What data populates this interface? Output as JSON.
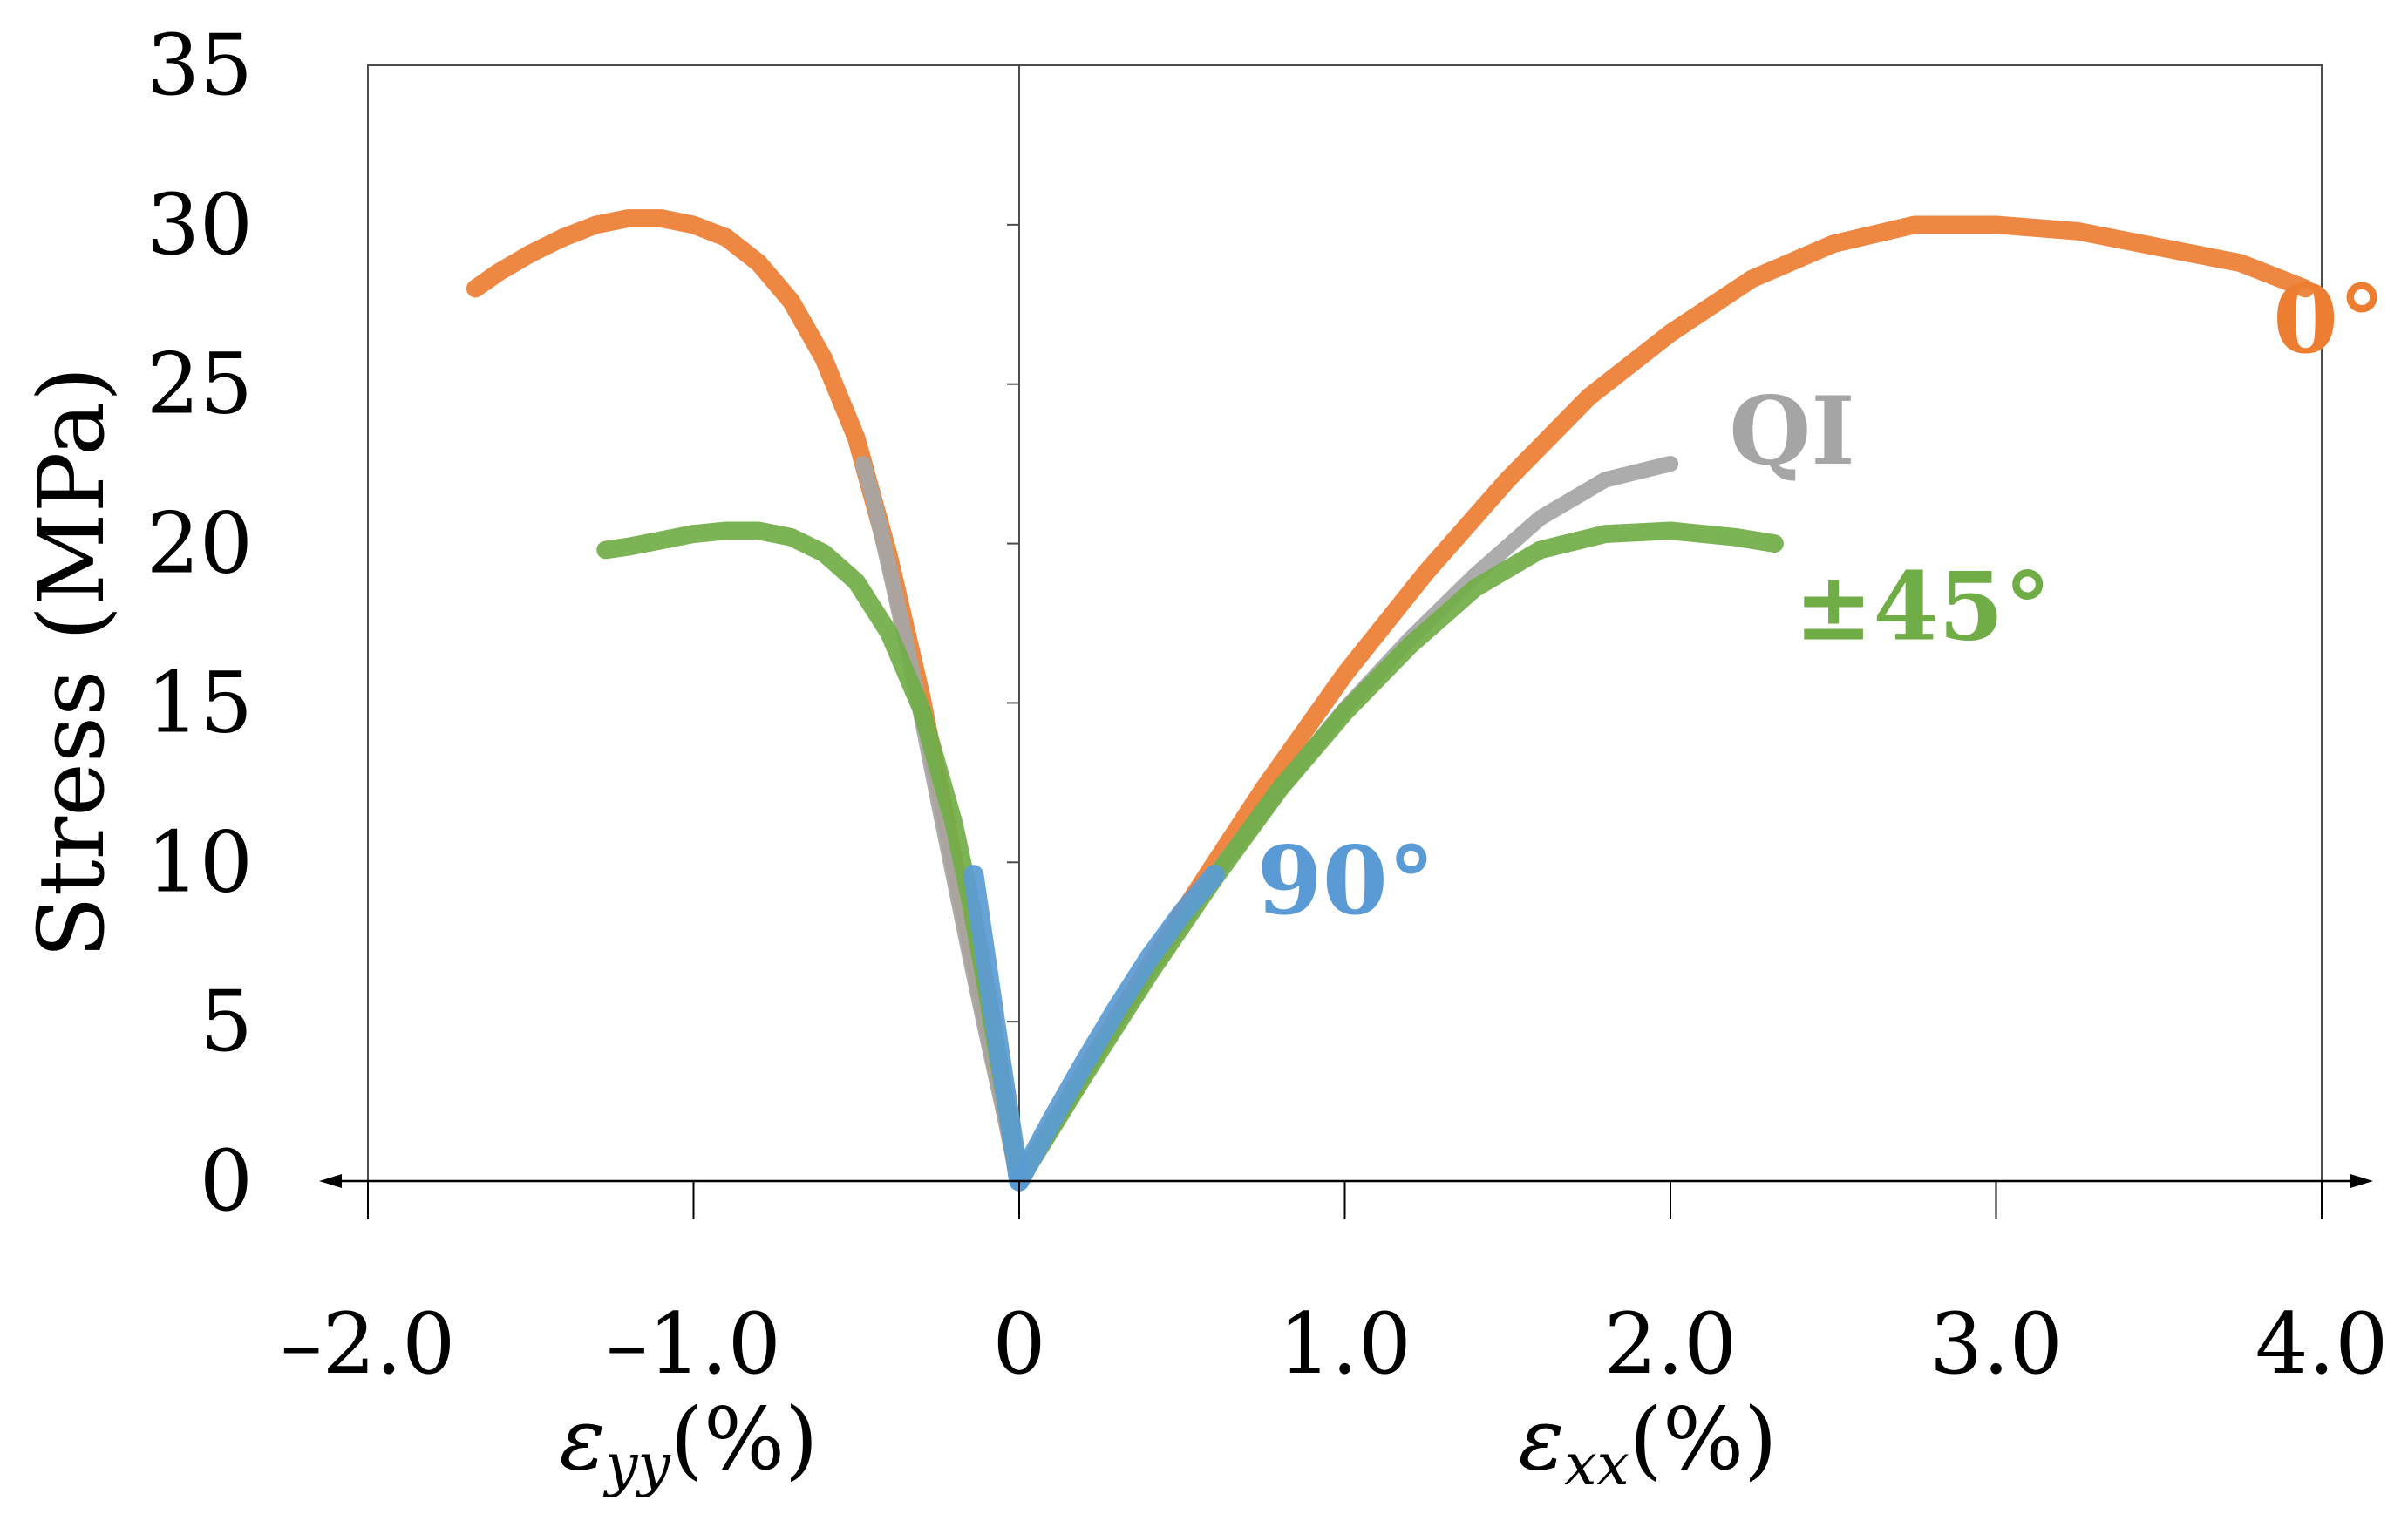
{
  "chart_data": {
    "type": "line",
    "title": "",
    "ylabel": "Stress (MPa)",
    "xlabel_left": {
      "symbol": "ε",
      "subscript": "yy",
      "unit": "(%)"
    },
    "xlabel_right": {
      "symbol": "ε",
      "subscript": "xx",
      "unit": "(%)"
    },
    "xlim": [
      -2.0,
      4.0
    ],
    "ylim": [
      0,
      35
    ],
    "x_ticks": [
      -2,
      -1,
      0,
      1,
      2,
      3,
      4
    ],
    "x_tick_labels": [
      "–2.0",
      "–1.0",
      "0",
      "1.0",
      "2.0",
      "3.0",
      "4.0"
    ],
    "y_ticks": [
      0,
      5,
      10,
      15,
      20,
      25,
      30,
      35
    ],
    "y_tick_labels": [
      "0",
      "5",
      "10",
      "15",
      "20",
      "25",
      "30",
      "35"
    ],
    "grid": false,
    "legend": "inline labels at curve ends",
    "series": [
      {
        "name": "0°",
        "color": "#ED7D31",
        "width": 8,
        "curves": [
          {
            "strain": "xx",
            "x": [
              0,
              0.25,
              0.5,
              0.75,
              1.0,
              1.25,
              1.5,
              1.75,
              2.0,
              2.25,
              2.5,
              2.75,
              3.0,
              3.25,
              3.5,
              3.75,
              3.95
            ],
            "y": [
              0,
              4.3,
              8.4,
              12.3,
              15.9,
              19.1,
              22.0,
              24.6,
              26.6,
              28.3,
              29.4,
              30.0,
              30.0,
              29.8,
              29.3,
              28.8,
              28.0
            ]
          },
          {
            "strain": "yy",
            "x": [
              0,
              -0.1,
              -0.2,
              -0.3,
              -0.4,
              -0.5,
              -0.6,
              -0.7,
              -0.8,
              -0.9,
              -1.0,
              -1.1,
              -1.2,
              -1.3,
              -1.4,
              -1.5,
              -1.6,
              -1.67
            ],
            "y": [
              0,
              5.0,
              10.0,
              15.2,
              19.6,
              23.3,
              25.8,
              27.6,
              28.8,
              29.6,
              30.0,
              30.2,
              30.2,
              30.0,
              29.6,
              29.1,
              28.5,
              28.0
            ]
          }
        ]
      },
      {
        "name": "QI",
        "color": "#A5A5A5",
        "width": 7,
        "curves": [
          {
            "strain": "xx",
            "x": [
              0,
              0.2,
              0.4,
              0.6,
              0.8,
              1.0,
              1.2,
              1.4,
              1.6,
              1.8,
              2.0
            ],
            "y": [
              0,
              3.4,
              6.6,
              9.6,
              12.3,
              14.8,
              17.0,
              19.0,
              20.8,
              22.0,
              22.5
            ]
          },
          {
            "strain": "yy",
            "x": [
              0,
              -0.05,
              -0.1,
              -0.15,
              -0.2,
              -0.25,
              -0.3,
              -0.35,
              -0.4,
              -0.45,
              -0.48
            ],
            "y": [
              0,
              2.3,
              4.6,
              7.0,
              9.5,
              12.0,
              14.6,
              17.0,
              19.3,
              21.5,
              22.5
            ]
          }
        ]
      },
      {
        "name": "±45°",
        "color": "#70AD47",
        "width": 8,
        "curves": [
          {
            "strain": "xx",
            "x": [
              0,
              0.2,
              0.4,
              0.6,
              0.8,
              1.0,
              1.2,
              1.4,
              1.6,
              1.8,
              2.0,
              2.2,
              2.32
            ],
            "y": [
              0,
              3.3,
              6.5,
              9.5,
              12.3,
              14.7,
              16.8,
              18.6,
              19.8,
              20.3,
              20.4,
              20.2,
              20.0
            ]
          },
          {
            "strain": "yy",
            "x": [
              0,
              -0.05,
              -0.1,
              -0.15,
              -0.2,
              -0.3,
              -0.4,
              -0.5,
              -0.6,
              -0.7,
              -0.8,
              -0.9,
              -1.0,
              -1.1,
              -1.2,
              -1.27
            ],
            "y": [
              0,
              3.0,
              6.0,
              8.8,
              11.2,
              14.8,
              17.2,
              18.8,
              19.7,
              20.2,
              20.4,
              20.4,
              20.3,
              20.1,
              19.9,
              19.8
            ]
          }
        ]
      },
      {
        "name": "90°",
        "color": "#5B9BD5",
        "width": 9,
        "curves": [
          {
            "strain": "xx",
            "x": [
              0,
              0.1,
              0.2,
              0.3,
              0.4,
              0.5,
              0.6
            ],
            "y": [
              0,
              1.9,
              3.7,
              5.4,
              7.0,
              8.4,
              9.6
            ]
          },
          {
            "strain": "yy",
            "x": [
              0,
              -0.03,
              -0.06,
              -0.09,
              -0.12,
              -0.14
            ],
            "y": [
              0,
              2.0,
              4.0,
              6.1,
              8.2,
              9.6
            ]
          }
        ]
      }
    ],
    "annotations": [
      {
        "text": "0°",
        "series": "0°",
        "at": [
          3.85,
          26.0
        ]
      },
      {
        "text": "QI",
        "series": "QI",
        "at": [
          2.18,
          22.5
        ]
      },
      {
        "text": "±45°",
        "series": "±45°",
        "at": [
          2.38,
          17.0
        ]
      },
      {
        "text": "90°",
        "series": "90°",
        "at": [
          0.73,
          8.4
        ]
      }
    ]
  }
}
